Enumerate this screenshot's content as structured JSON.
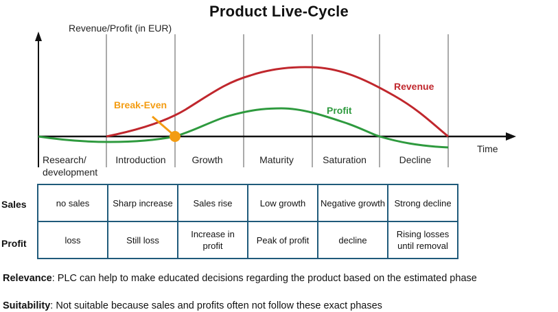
{
  "title": "Product Live-Cycle",
  "y_axis_label": "Revenue/Profit (in EUR)",
  "x_axis_label": "Time",
  "break_even_label": "Break-Even",
  "curves": {
    "revenue": {
      "label": "Revenue",
      "color": "#c0272d"
    },
    "profit": {
      "label": "Profit",
      "color": "#2e9a3e"
    }
  },
  "break_even_color": "#f39c12",
  "phases": [
    {
      "line1": "Research/",
      "line2": "development"
    },
    {
      "line1": "Introduction",
      "line2": ""
    },
    {
      "line1": "Growth",
      "line2": ""
    },
    {
      "line1": "Maturity",
      "line2": ""
    },
    {
      "line1": "Saturation",
      "line2": ""
    },
    {
      "line1": "Decline",
      "line2": ""
    }
  ],
  "table": {
    "rows": [
      {
        "label": "Sales",
        "cells": [
          "no sales",
          "Sharp increase",
          "Sales rise",
          "Low growth",
          "Negative growth",
          "Strong decline"
        ]
      },
      {
        "label": "Profit",
        "cells": [
          "loss",
          "Still loss",
          "Increase in profit",
          "Peak of profit",
          "decline",
          "Rising losses until removal"
        ]
      }
    ]
  },
  "relevance": {
    "label": "Relevance",
    "text": ": PLC can help to make educated decisions regarding the product based on the estimated phase"
  },
  "suitability": {
    "label": "Suitability",
    "text": ": Not suitable because sales and profits often not follow these exact phases"
  }
}
